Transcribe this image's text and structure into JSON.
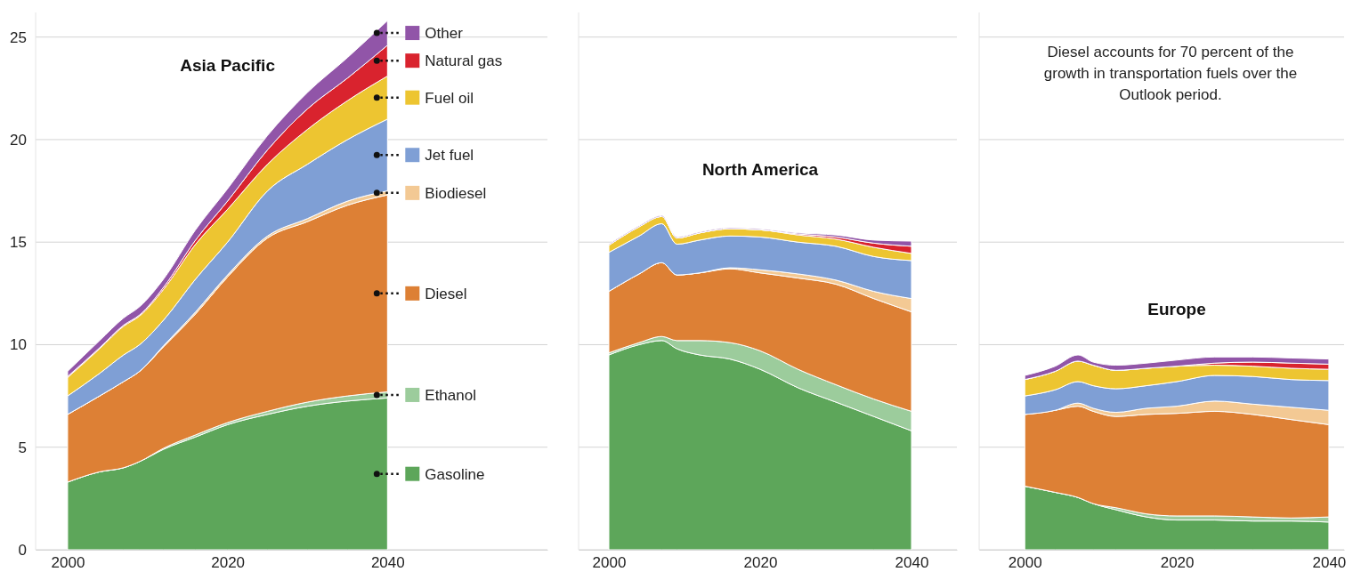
{
  "chart_data": [
    {
      "type": "area",
      "title": "Asia Pacific",
      "stacked": true,
      "legend": "right",
      "grid": "y",
      "x": [
        2000,
        2004,
        2007,
        2009,
        2012,
        2016,
        2020,
        2025,
        2030,
        2035,
        2040
      ],
      "xlim": [
        1996,
        2060
      ],
      "xticks": [
        2000,
        2020,
        2040
      ],
      "ylim": [
        0,
        26.2
      ],
      "yticks": [
        0,
        5,
        10,
        15,
        20,
        25
      ],
      "series": [
        {
          "name": "Gasoline",
          "color": "#5da65a",
          "values": [
            3.3,
            3.8,
            4.0,
            4.3,
            4.9,
            5.5,
            6.1,
            6.6,
            7.0,
            7.25,
            7.4
          ]
        },
        {
          "name": "Ethanol",
          "color": "#9ccc9c",
          "values": [
            0,
            0,
            0,
            0,
            0.05,
            0.1,
            0.1,
            0.15,
            0.2,
            0.25,
            0.3
          ]
        },
        {
          "name": "Diesel",
          "color": "#dd8035",
          "values": [
            3.3,
            3.7,
            4.2,
            4.4,
            4.95,
            5.9,
            7.1,
            8.45,
            8.8,
            9.3,
            9.6
          ]
        },
        {
          "name": "Biodiesel",
          "color": "#f3c994",
          "values": [
            0,
            0,
            0,
            0,
            0.05,
            0.1,
            0.1,
            0.1,
            0.15,
            0.2,
            0.2
          ]
        },
        {
          "name": "Jet fuel",
          "color": "#7f9fd5",
          "values": [
            0.9,
            1.1,
            1.3,
            1.3,
            1.25,
            1.6,
            1.6,
            2.2,
            2.65,
            3.0,
            3.5
          ]
        },
        {
          "name": "Fuel oil",
          "color": "#edc531",
          "values": [
            0.9,
            1.2,
            1.4,
            1.4,
            1.5,
            1.7,
            1.6,
            1.3,
            1.7,
            1.9,
            2.1
          ]
        },
        {
          "name": "Natural gas",
          "color": "#d9232e",
          "values": [
            0.05,
            0.05,
            0.05,
            0.05,
            0.1,
            0.2,
            0.4,
            0.7,
            1.0,
            1.1,
            1.5
          ]
        },
        {
          "name": "Other",
          "color": "#9155a8",
          "values": [
            0.25,
            0.35,
            0.35,
            0.4,
            0.4,
            0.5,
            0.6,
            0.7,
            0.8,
            1.0,
            1.2
          ]
        }
      ]
    },
    {
      "type": "area",
      "title": "North America",
      "stacked": true,
      "grid": "y",
      "tick_labels": "x",
      "x": [
        2000,
        2004,
        2007,
        2009,
        2012,
        2016,
        2020,
        2025,
        2030,
        2035,
        2040
      ],
      "xlim": [
        1996,
        2046
      ],
      "xticks": [
        2000,
        2020,
        2040
      ],
      "ylim": [
        0,
        26.2
      ],
      "yticks": [
        0,
        5,
        10,
        15,
        20,
        25
      ],
      "series": [
        {
          "color": "#5da65a",
          "values": [
            9.5,
            10.0,
            10.2,
            9.8,
            9.5,
            9.3,
            8.8,
            7.9,
            7.2,
            6.5,
            5.8
          ]
        },
        {
          "color": "#9ccc9c",
          "values": [
            0.1,
            0.1,
            0.2,
            0.4,
            0.7,
            0.8,
            0.9,
            0.9,
            0.85,
            0.85,
            0.95
          ]
        },
        {
          "color": "#dd8035",
          "values": [
            3.0,
            3.35,
            3.6,
            3.2,
            3.3,
            3.6,
            3.8,
            4.45,
            4.9,
            4.9,
            4.85
          ]
        },
        {
          "color": "#f3c994",
          "values": [
            0,
            0,
            0,
            0,
            0,
            0.05,
            0.15,
            0.2,
            0.2,
            0.35,
            0.65
          ]
        },
        {
          "color": "#7f9fd5",
          "values": [
            1.9,
            1.85,
            1.9,
            1.5,
            1.6,
            1.55,
            1.6,
            1.55,
            1.65,
            1.7,
            1.85
          ]
        },
        {
          "color": "#edc531",
          "values": [
            0.35,
            0.45,
            0.35,
            0.3,
            0.35,
            0.35,
            0.35,
            0.35,
            0.35,
            0.45,
            0.35
          ]
        },
        {
          "color": "#d9232e",
          "values": [
            0,
            0,
            0,
            0,
            0,
            0,
            0,
            0.05,
            0.1,
            0.2,
            0.35
          ]
        },
        {
          "color": "#9155a8",
          "values": [
            0.05,
            0.05,
            0.05,
            0.05,
            0.05,
            0.05,
            0.05,
            0.05,
            0.1,
            0.15,
            0.25
          ]
        }
      ]
    },
    {
      "type": "area",
      "title": "Europe",
      "stacked": true,
      "grid": "y",
      "tick_labels": "x",
      "annotations": [
        "Diesel accounts for 70 percent of the growth in transportation fuels over the Outlook period."
      ],
      "x": [
        2000,
        2004,
        2007,
        2009,
        2012,
        2016,
        2020,
        2025,
        2030,
        2035,
        2040
      ],
      "xlim": [
        1994,
        2042
      ],
      "xticks": [
        2000,
        2020,
        2040
      ],
      "ylim": [
        0,
        26.2
      ],
      "yticks": [
        0,
        5,
        10,
        15,
        20,
        25
      ],
      "series": [
        {
          "color": "#5da65a",
          "values": [
            3.1,
            2.8,
            2.55,
            2.25,
            1.95,
            1.6,
            1.45,
            1.45,
            1.4,
            1.4,
            1.35
          ]
        },
        {
          "color": "#9ccc9c",
          "values": [
            0,
            0,
            0,
            0,
            0.1,
            0.15,
            0.2,
            0.2,
            0.2,
            0.15,
            0.25
          ]
        },
        {
          "color": "#dd8035",
          "values": [
            3.5,
            4.0,
            4.45,
            4.5,
            4.45,
            4.85,
            5.0,
            5.1,
            5.0,
            4.8,
            4.5
          ]
        },
        {
          "color": "#f3c994",
          "values": [
            0,
            0,
            0.15,
            0.15,
            0.2,
            0.3,
            0.35,
            0.5,
            0.5,
            0.6,
            0.7
          ]
        },
        {
          "color": "#7f9fd5",
          "values": [
            0.9,
            1.0,
            1.05,
            1.1,
            1.15,
            1.1,
            1.2,
            1.25,
            1.35,
            1.35,
            1.45
          ]
        },
        {
          "color": "#edc531",
          "values": [
            0.8,
            0.9,
            1.0,
            1.0,
            0.9,
            0.85,
            0.75,
            0.5,
            0.5,
            0.55,
            0.55
          ]
        },
        {
          "color": "#d9232e",
          "values": [
            0,
            0,
            0,
            0,
            0,
            0,
            0,
            0.1,
            0.2,
            0.25,
            0.25
          ]
        },
        {
          "color": "#9155a8",
          "values": [
            0.2,
            0.25,
            0.3,
            0.15,
            0.25,
            0.25,
            0.3,
            0.3,
            0.25,
            0.25,
            0.25
          ]
        }
      ]
    }
  ]
}
